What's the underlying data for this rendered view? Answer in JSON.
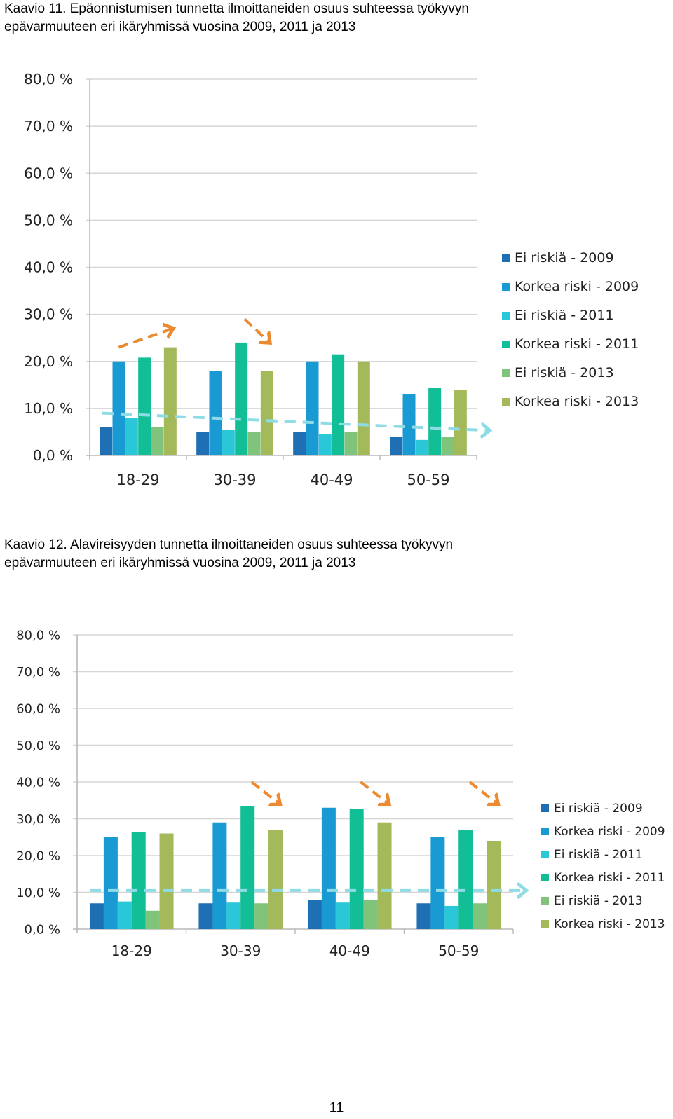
{
  "captions": [
    {
      "line1": "Kaavio 11. Epäonnistumisen tunnetta ilmoittaneiden osuus suhteessa työkyvyn",
      "line2": "epävarmuuteen eri ikäryhmissä vuosina 2009, 2011 ja 2013"
    },
    {
      "line1": "Kaavio 12. Alavireisyyden tunnetta ilmoittaneiden osuus suhteessa työkyvyn",
      "line2": "epävarmuuteen eri ikäryhmissä vuosina 2009,  2011 ja  2013"
    }
  ],
  "page_number": "11",
  "chart_data": [
    {
      "type": "bar",
      "title": "",
      "xlabel": "",
      "ylabel": "",
      "ylim": [
        0,
        80
      ],
      "yticks": [
        "0,0 %",
        "10,0 %",
        "20,0 %",
        "30,0 %",
        "40,0 %",
        "50,0 %",
        "60,0 %",
        "70,0 %",
        "80,0 %"
      ],
      "grid": true,
      "legend_position": "right",
      "categories": [
        "18-29",
        "30-39",
        "40-49",
        "50-59"
      ],
      "series": [
        {
          "name": "Ei riskiä - 2009",
          "color": "#1f6fb5",
          "values": [
            6.0,
            5.0,
            5.0,
            4.0
          ]
        },
        {
          "name": "Korkea riski - 2009",
          "color": "#1a9ad3",
          "values": [
            20.0,
            18.0,
            20.0,
            13.0
          ]
        },
        {
          "name": "Ei riskiä - 2011",
          "color": "#2ac7d8",
          "values": [
            8.0,
            5.5,
            4.5,
            3.3
          ]
        },
        {
          "name": "Korkea riski - 2011",
          "color": "#12be96",
          "values": [
            20.8,
            24.0,
            21.5,
            14.3
          ]
        },
        {
          "name": "Ei riskiä - 2013",
          "color": "#7fc47a",
          "values": [
            6.0,
            5.0,
            5.0,
            4.0
          ]
        },
        {
          "name": "Korkea riski - 2013",
          "color": "#a3b95a",
          "values": [
            23.0,
            18.0,
            20.0,
            14.0
          ]
        }
      ],
      "annotations": [
        {
          "kind": "trend-arrow",
          "color": "#ec8a32",
          "direction": "up",
          "group": "18-29",
          "from": 23,
          "to": 27
        },
        {
          "kind": "trend-arrow",
          "color": "#ec8a32",
          "direction": "down",
          "group": "30-39",
          "from": 29,
          "to": 24
        },
        {
          "kind": "trend-line",
          "color": "#8fdce6",
          "from": 9,
          "to": 5.3
        }
      ]
    },
    {
      "type": "bar",
      "title": "",
      "xlabel": "",
      "ylabel": "",
      "ylim": [
        0,
        80
      ],
      "yticks": [
        "0,0 %",
        "10,0 %",
        "20,0 %",
        "30,0 %",
        "40,0 %",
        "50,0 %",
        "60,0 %",
        "70,0 %",
        "80,0 %"
      ],
      "grid": true,
      "legend_position": "right",
      "categories": [
        "18-29",
        "30-39",
        "40-49",
        "50-59"
      ],
      "series": [
        {
          "name": "Ei riskiä - 2009",
          "color": "#1f6fb5",
          "values": [
            7.0,
            7.0,
            8.0,
            7.0
          ]
        },
        {
          "name": "Korkea riski - 2009",
          "color": "#1a9ad3",
          "values": [
            25.0,
            29.0,
            33.0,
            25.0
          ]
        },
        {
          "name": "Ei riskiä - 2011",
          "color": "#2ac7d8",
          "values": [
            7.5,
            7.2,
            7.2,
            6.3
          ]
        },
        {
          "name": "Korkea riski - 2011",
          "color": "#12be96",
          "values": [
            26.3,
            33.5,
            32.7,
            27.0
          ]
        },
        {
          "name": "Ei riskiä - 2013",
          "color": "#7fc47a",
          "values": [
            5.0,
            7.0,
            8.0,
            7.0
          ]
        },
        {
          "name": "Korkea riski - 2013",
          "color": "#a3b95a",
          "values": [
            26.0,
            27.0,
            29.0,
            24.0
          ]
        }
      ],
      "annotations": [
        {
          "kind": "trend-arrow",
          "color": "#ec8a32",
          "direction": "down",
          "group": "30-39",
          "from": 40,
          "to": 34
        },
        {
          "kind": "trend-arrow",
          "color": "#ec8a32",
          "direction": "down",
          "group": "40-49",
          "from": 40,
          "to": 34
        },
        {
          "kind": "trend-arrow",
          "color": "#ec8a32",
          "direction": "down",
          "group": "50-59",
          "from": 40,
          "to": 34
        },
        {
          "kind": "trend-line",
          "color": "#8fdce6",
          "from": 10.5,
          "to": 10.5
        }
      ]
    }
  ]
}
